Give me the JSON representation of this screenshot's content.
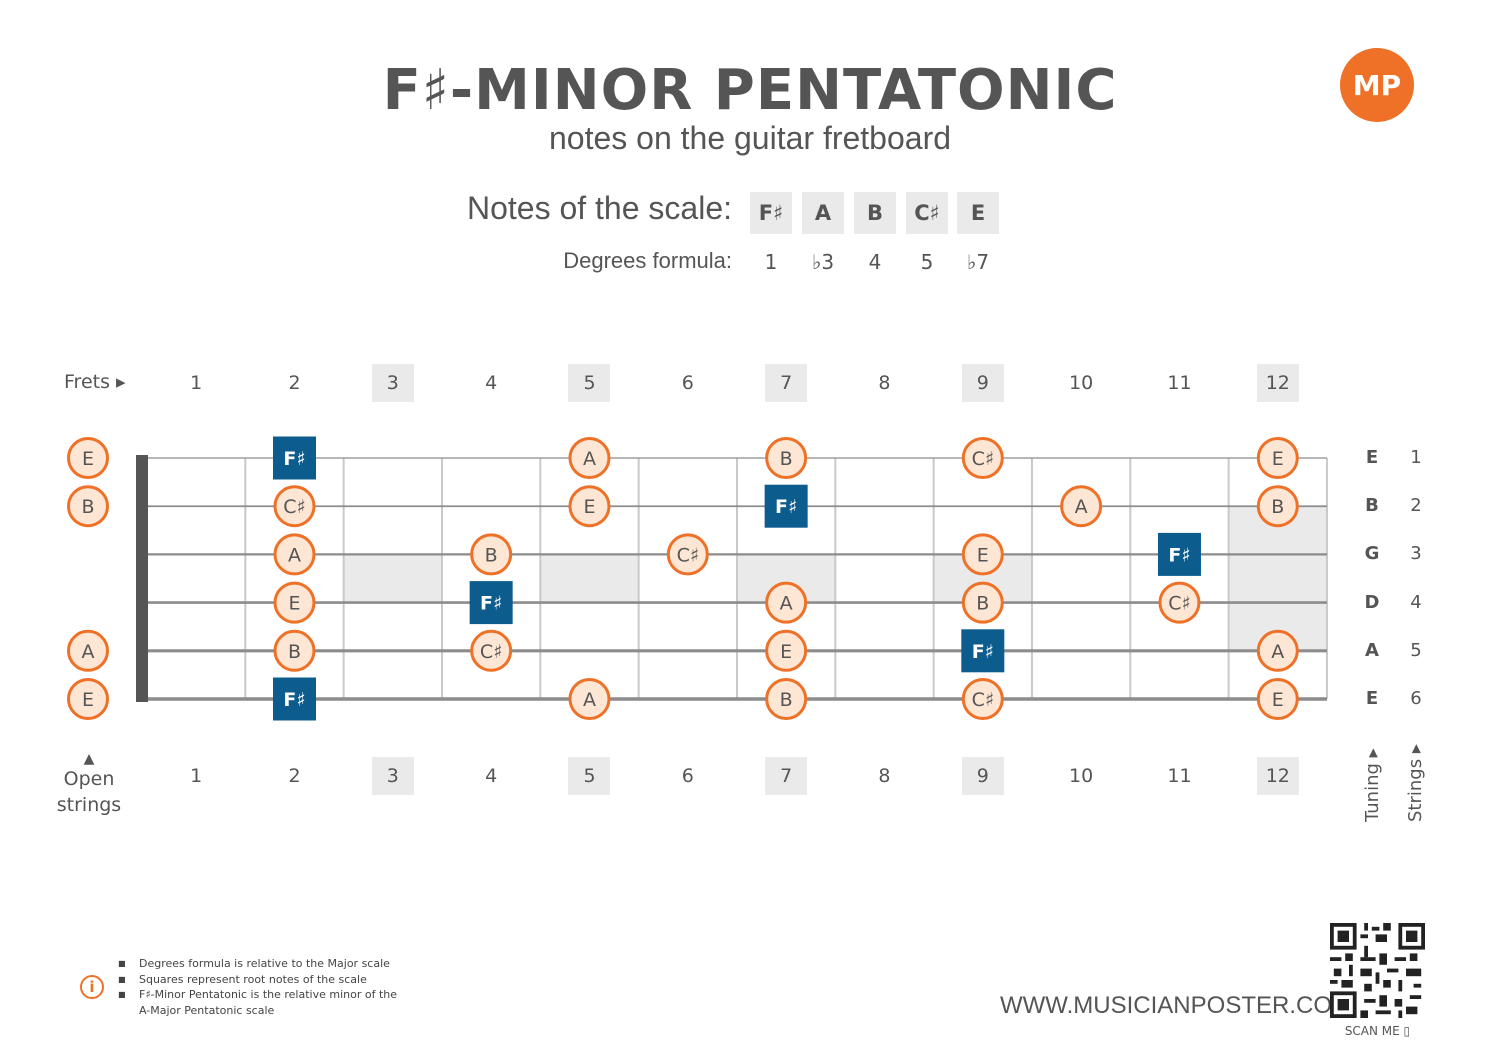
{
  "header": {
    "title": "F♯-MINOR PENTATONIC",
    "subtitle": "notes on the guitar fretboard",
    "logo_text": "MP"
  },
  "scale": {
    "notes_label": "Notes of the scale:",
    "degrees_label": "Degrees formula:",
    "notes": [
      "F♯",
      "A",
      "B",
      "C♯",
      "E"
    ],
    "degrees": [
      "1",
      "♭3",
      "4",
      "5",
      "♭7"
    ]
  },
  "fretboard": {
    "frets_label": "Frets ▸",
    "fret_numbers": [
      "1",
      "2",
      "3",
      "4",
      "5",
      "6",
      "7",
      "8",
      "9",
      "10",
      "11",
      "12"
    ],
    "marked_frets": [
      3,
      5,
      7,
      9,
      12
    ],
    "open_strings_label_1": "Open",
    "open_strings_label_2": "strings",
    "tuning_label": "Tuning ▸",
    "strings_label": "Strings ▸",
    "strings": [
      {
        "number": "1",
        "tuning": "E",
        "open": "E",
        "notes": [
          {
            "fret": 2,
            "note": "F♯",
            "root": true
          },
          {
            "fret": 5,
            "note": "A"
          },
          {
            "fret": 7,
            "note": "B"
          },
          {
            "fret": 9,
            "note": "C♯"
          },
          {
            "fret": 12,
            "note": "E"
          }
        ]
      },
      {
        "number": "2",
        "tuning": "B",
        "open": "B",
        "notes": [
          {
            "fret": 2,
            "note": "C♯"
          },
          {
            "fret": 5,
            "note": "E"
          },
          {
            "fret": 7,
            "note": "F♯",
            "root": true
          },
          {
            "fret": 10,
            "note": "A"
          },
          {
            "fret": 12,
            "note": "B"
          }
        ]
      },
      {
        "number": "3",
        "tuning": "G",
        "open": "",
        "notes": [
          {
            "fret": 2,
            "note": "A"
          },
          {
            "fret": 4,
            "note": "B"
          },
          {
            "fret": 6,
            "note": "C♯"
          },
          {
            "fret": 9,
            "note": "E"
          },
          {
            "fret": 11,
            "note": "F♯",
            "root": true
          }
        ]
      },
      {
        "number": "4",
        "tuning": "D",
        "open": "",
        "notes": [
          {
            "fret": 2,
            "note": "E"
          },
          {
            "fret": 4,
            "note": "F♯",
            "root": true
          },
          {
            "fret": 7,
            "note": "A"
          },
          {
            "fret": 9,
            "note": "B"
          },
          {
            "fret": 11,
            "note": "C♯"
          }
        ]
      },
      {
        "number": "5",
        "tuning": "A",
        "open": "A",
        "notes": [
          {
            "fret": 2,
            "note": "B"
          },
          {
            "fret": 4,
            "note": "C♯"
          },
          {
            "fret": 7,
            "note": "E"
          },
          {
            "fret": 9,
            "note": "F♯",
            "root": true
          },
          {
            "fret": 12,
            "note": "A"
          }
        ]
      },
      {
        "number": "6",
        "tuning": "E",
        "open": "E",
        "notes": [
          {
            "fret": 2,
            "note": "F♯",
            "root": true
          },
          {
            "fret": 5,
            "note": "A"
          },
          {
            "fret": 7,
            "note": "B"
          },
          {
            "fret": 9,
            "note": "C♯"
          },
          {
            "fret": 12,
            "note": "E"
          }
        ]
      }
    ]
  },
  "footer": {
    "info_icon": "i",
    "notes": [
      "Degrees formula is relative to the Major scale",
      "Squares represent root notes of the scale",
      "F♯-Minor Pentatonic is the relative minor of the A-Major Pentatonic scale"
    ],
    "website": "WWW.MUSICIANPOSTER.COM",
    "scan_label": "SCAN ME ▯"
  },
  "colors": {
    "accent": "#ee7127",
    "root": "#0d5c8e",
    "note_fill": "#fde6d4",
    "text": "#555555",
    "marker": "#eaeaea"
  }
}
